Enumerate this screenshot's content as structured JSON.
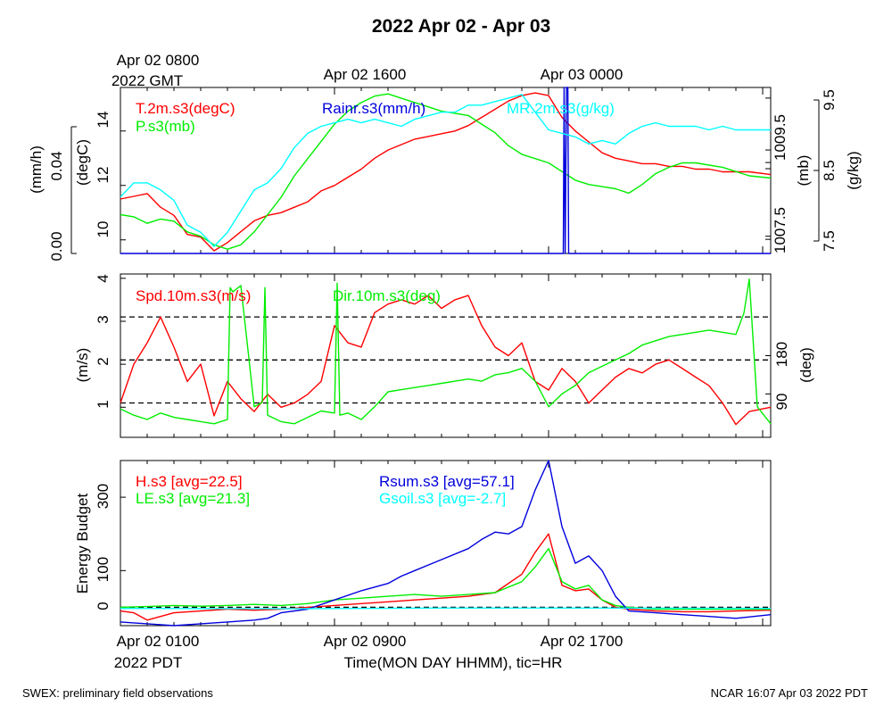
{
  "title": "2022 Apr 02 - Apr 03",
  "footer": {
    "left": "SWEX: preliminary field observations",
    "right": "NCAR 16:07 Apr 03 2022 PDT"
  },
  "colors": {
    "red": "#ff0000",
    "green": "#00ee00",
    "blue": "#0000dd",
    "cyan": "#00ffff",
    "black": "#000000"
  },
  "top_time_labels": [
    {
      "line1": "Apr 02 0800",
      "line2": "2022 GMT",
      "x_hr": 0
    },
    {
      "line1": "Apr 02 1600",
      "line2": "",
      "x_hr": 8
    },
    {
      "line1": "Apr 03 0000",
      "line2": "",
      "x_hr": 16
    }
  ],
  "bottom_time_labels": [
    {
      "line1": "Apr 02 0100",
      "line2": "2022 PDT",
      "x_hr": 0
    },
    {
      "line1": "Apr 02 0900",
      "line2": "",
      "x_hr": 8
    },
    {
      "line1": "Apr 02 1700",
      "line2": "",
      "x_hr": 16
    }
  ],
  "xlabel": "Time(MON DAY HHMM), tic=HR",
  "chart_data": [
    {
      "type": "line",
      "panel": "met",
      "xlim": [
        0,
        24.3
      ],
      "axes": {
        "temp": {
          "label": "(degC)",
          "ticks": [
            "10",
            "12",
            "14"
          ],
          "tick_values": [
            10,
            12,
            14
          ],
          "range": [
            9.5,
            15.6
          ]
        },
        "rain": {
          "label": "(mm/h)",
          "ticks": [
            "0.00",
            "0.04"
          ],
          "tick_values": [
            0,
            0.04
          ],
          "range": [
            0,
            0.073
          ]
        },
        "pres": {
          "label": "(mb)",
          "ticks": [
            "1007.5",
            "1009.5"
          ],
          "tick_values": [
            1007.5,
            1009.5
          ],
          "range": [
            1007.1,
            1010.95
          ]
        },
        "mr": {
          "label": "(g/kg)",
          "ticks": [
            "7.5",
            "8.5",
            "9.5"
          ],
          "tick_values": [
            7.5,
            8.5,
            9.5
          ],
          "range": [
            7.3,
            9.65
          ]
        }
      },
      "series": [
        {
          "name": "T.2m.s3(degC)",
          "color": "#ff0000",
          "axis": "temp",
          "x": [
            0,
            0.5,
            1,
            1.5,
            2,
            2.5,
            3,
            3.5,
            4,
            4.5,
            5,
            5.5,
            6,
            6.5,
            7,
            7.5,
            8,
            8.5,
            9,
            9.5,
            10,
            10.5,
            11,
            11.5,
            12,
            12.5,
            13,
            13.5,
            14,
            14.5,
            15,
            15.5,
            16,
            16.5,
            17,
            17.5,
            18,
            18.5,
            19,
            19.5,
            20,
            20.5,
            21,
            21.5,
            22,
            22.5,
            23,
            23.5,
            24.3
          ],
          "y": [
            11.5,
            11.6,
            11.7,
            11.2,
            10.9,
            10.2,
            10.1,
            9.6,
            9.9,
            10.3,
            10.7,
            10.9,
            11.0,
            11.2,
            11.4,
            11.8,
            12.0,
            12.3,
            12.6,
            13.0,
            13.3,
            13.5,
            13.7,
            13.8,
            13.9,
            14.0,
            14.2,
            14.5,
            14.8,
            15.1,
            15.3,
            15.4,
            15.3,
            14.5,
            14.0,
            13.6,
            13.2,
            13.0,
            12.9,
            12.8,
            12.8,
            12.7,
            12.7,
            12.6,
            12.6,
            12.5,
            12.5,
            12.5,
            12.4
          ]
        },
        {
          "name": "P.s3(mb)",
          "color": "#00ee00",
          "axis": "pres",
          "x": [
            0,
            0.5,
            1,
            1.5,
            2,
            2.5,
            3,
            3.5,
            4,
            4.5,
            5,
            5.5,
            6,
            6.5,
            7,
            7.5,
            8,
            8.5,
            9,
            9.5,
            10,
            10.5,
            11,
            11.5,
            12,
            12.5,
            13,
            13.5,
            14,
            14.5,
            15,
            15.5,
            16,
            16.5,
            17,
            17.5,
            18,
            18.5,
            19,
            19.5,
            20,
            20.5,
            21,
            21.5,
            22,
            22.5,
            23,
            23.5,
            24.3
          ],
          "y": [
            1008.0,
            1007.95,
            1007.8,
            1007.9,
            1007.85,
            1007.6,
            1007.5,
            1007.3,
            1007.2,
            1007.3,
            1007.6,
            1008.0,
            1008.4,
            1008.9,
            1009.3,
            1009.7,
            1010.1,
            1010.4,
            1010.6,
            1010.75,
            1010.8,
            1010.7,
            1010.6,
            1010.5,
            1010.4,
            1010.35,
            1010.3,
            1010.1,
            1009.9,
            1009.6,
            1009.4,
            1009.3,
            1009.2,
            1009.0,
            1008.8,
            1008.7,
            1008.65,
            1008.6,
            1008.5,
            1008.7,
            1008.95,
            1009.1,
            1009.2,
            1009.2,
            1009.15,
            1009.1,
            1009.0,
            1008.9,
            1008.85
          ]
        },
        {
          "name": "Rainr.s3(mm/h)",
          "color": "#0000dd",
          "axis": "rain",
          "x": [
            0,
            16.55,
            16.58,
            16.62,
            16.67,
            16.72,
            16.75,
            24.3
          ],
          "y": [
            0,
            0,
            0.073,
            0.0,
            0.073,
            0.073,
            0,
            0
          ]
        },
        {
          "name": "MR.2m.s3(g/kg)",
          "color": "#00ffff",
          "axis": "mr",
          "x": [
            0,
            0.5,
            1,
            1.5,
            2,
            2.5,
            3,
            3.5,
            4,
            4.5,
            5,
            5.5,
            6,
            6.5,
            7,
            7.5,
            8,
            8.5,
            9,
            9.5,
            10,
            10.5,
            11,
            11.5,
            12,
            12.5,
            13,
            13.5,
            14,
            14.5,
            15,
            15.5,
            16,
            16.5,
            17,
            17.5,
            18,
            18.5,
            19,
            19.5,
            20,
            20.5,
            21,
            21.5,
            22,
            22.5,
            23,
            23.5,
            24.3
          ],
          "y": [
            8.1,
            8.3,
            8.3,
            8.2,
            8.05,
            7.7,
            7.6,
            7.4,
            7.6,
            7.9,
            8.2,
            8.3,
            8.5,
            8.8,
            9.0,
            9.1,
            9.15,
            9.2,
            9.15,
            9.2,
            9.15,
            9.1,
            9.2,
            9.25,
            9.3,
            9.3,
            9.4,
            9.4,
            9.45,
            9.5,
            9.55,
            9.3,
            9.05,
            9.0,
            8.95,
            8.85,
            8.9,
            8.85,
            9.0,
            9.1,
            9.15,
            9.1,
            9.1,
            9.1,
            9.05,
            9.1,
            9.05,
            9.05,
            9.05
          ]
        }
      ],
      "legend": [
        {
          "text": "T.2m.s3(degC)",
          "color": "#ff0000"
        },
        {
          "text": "P.s3(mb)",
          "color": "#00ee00"
        },
        {
          "text": "Rainr.s3(mm/h)",
          "color": "#0000dd"
        },
        {
          "text": "MR.2m.s3(g/kg)",
          "color": "#00ffff"
        }
      ]
    },
    {
      "type": "line",
      "panel": "wind",
      "xlim": [
        0,
        24.3
      ],
      "axes": {
        "spd": {
          "label": "(m/s)",
          "ticks": [
            "1",
            "2",
            "3",
            "4"
          ],
          "tick_values": [
            1,
            2,
            3,
            4
          ],
          "range": [
            0.3,
            4.1
          ]
        },
        "dir": {
          "label": "(deg)",
          "ticks": [
            "90",
            "180"
          ],
          "tick_values": [
            90,
            180
          ],
          "range": [
            -12,
            372
          ]
        }
      },
      "reference_lines": {
        "axis": "spd",
        "values": [
          1.1,
          2.1,
          3.1
        ],
        "style": "dashed"
      },
      "series": [
        {
          "name": "Spd.10m.s3(m/s)",
          "color": "#ff0000",
          "axis": "spd",
          "x": [
            0,
            0.5,
            1,
            1.5,
            2,
            2.5,
            3,
            3.5,
            4,
            4.5,
            5,
            5.5,
            6,
            6.5,
            7,
            7.5,
            8,
            8.5,
            9,
            9.5,
            10,
            10.5,
            11,
            11.5,
            12,
            12.5,
            13,
            13.5,
            14,
            14.5,
            15,
            15.5,
            16,
            16.5,
            17,
            17.5,
            18,
            18.5,
            19,
            19.5,
            20,
            20.5,
            21,
            21.5,
            22,
            22.5,
            23,
            23.5,
            24.3
          ],
          "y": [
            1.1,
            2.0,
            2.5,
            3.1,
            2.4,
            1.6,
            2.0,
            0.8,
            1.6,
            1.2,
            0.9,
            1.3,
            1.0,
            1.1,
            1.3,
            1.6,
            2.9,
            2.5,
            2.4,
            3.2,
            3.4,
            3.5,
            3.4,
            3.6,
            3.3,
            3.5,
            3.6,
            2.9,
            2.4,
            2.2,
            2.5,
            1.6,
            1.4,
            1.9,
            1.6,
            1.1,
            1.4,
            1.7,
            1.9,
            1.8,
            2.0,
            2.1,
            1.9,
            1.7,
            1.5,
            1.1,
            0.6,
            0.9,
            1.0
          ]
        },
        {
          "name": "Dir.10m.s3(deg)",
          "color": "#00ee00",
          "axis": "dir",
          "x": [
            0,
            0.5,
            1,
            1.5,
            2,
            2.5,
            3,
            3.5,
            4,
            4.1,
            4.2,
            4.5,
            5,
            5.3,
            5.4,
            5.5,
            6,
            6.5,
            7,
            7.5,
            8,
            8.1,
            8.2,
            8.5,
            9,
            9.5,
            10,
            10.5,
            11,
            11.5,
            12,
            12.5,
            13,
            13.5,
            14,
            14.5,
            15,
            15.5,
            16,
            16.5,
            17,
            17.5,
            18,
            18.5,
            19,
            19.5,
            20,
            20.5,
            21,
            21.5,
            22,
            22.5,
            23,
            23.3,
            23.5,
            23.8,
            24.3
          ],
          "y": [
            55,
            40,
            30,
            45,
            35,
            30,
            25,
            20,
            30,
            340,
            330,
            345,
            60,
            70,
            340,
            40,
            25,
            20,
            35,
            50,
            45,
            350,
            40,
            45,
            30,
            60,
            95,
            100,
            105,
            110,
            115,
            120,
            125,
            120,
            135,
            140,
            150,
            120,
            60,
            90,
            110,
            140,
            155,
            170,
            185,
            205,
            215,
            225,
            230,
            235,
            240,
            235,
            230,
            280,
            360,
            60,
            20
          ]
        }
      ],
      "legend": [
        {
          "text": "Spd.10m.s3(m/s)",
          "color": "#ff0000"
        },
        {
          "text": "Dir.10m.s3(deg)",
          "color": "#00ee00"
        }
      ]
    },
    {
      "type": "line",
      "panel": "energy",
      "xlim": [
        0,
        24.3
      ],
      "axes": {
        "eb": {
          "label": "Energy Budget",
          "ticks": [
            "0",
            "100",
            "300"
          ],
          "tick_values": [
            0,
            100,
            300
          ],
          "range": [
            -50,
            400
          ]
        }
      },
      "reference_lines": {
        "axis": "eb",
        "values": [
          0
        ],
        "style": "dashed"
      },
      "series": [
        {
          "name": "H.s3",
          "color": "#ff0000",
          "axis": "eb",
          "x": [
            0,
            0.5,
            1,
            1.5,
            2,
            3,
            4,
            5,
            6,
            7,
            8,
            9,
            10,
            11,
            12,
            13,
            14,
            15,
            15.5,
            16,
            16.5,
            17,
            17.5,
            18,
            18.5,
            19,
            20,
            21,
            22,
            23,
            24.3
          ],
          "y": [
            -10,
            -15,
            -35,
            -25,
            -15,
            -10,
            -5,
            -8,
            -5,
            0,
            5,
            10,
            15,
            20,
            25,
            30,
            40,
            90,
            150,
            200,
            60,
            45,
            50,
            20,
            0,
            -5,
            -10,
            -12,
            -12,
            -10,
            -8
          ]
        },
        {
          "name": "LE.s3",
          "color": "#00ee00",
          "axis": "eb",
          "x": [
            0,
            1,
            2,
            3,
            4,
            5,
            6,
            7,
            8,
            9,
            10,
            11,
            12,
            13,
            14,
            15,
            15.5,
            16,
            16.5,
            17,
            17.5,
            18,
            18.5,
            19,
            20,
            21,
            22,
            23,
            24.3
          ],
          "y": [
            0,
            2,
            5,
            3,
            5,
            8,
            5,
            10,
            20,
            25,
            30,
            35,
            30,
            35,
            40,
            70,
            110,
            160,
            70,
            50,
            60,
            20,
            5,
            0,
            -5,
            -5,
            -5,
            -5,
            -5
          ]
        },
        {
          "name": "Rsum.s3",
          "color": "#0000dd",
          "axis": "eb",
          "x": [
            0,
            1,
            2,
            3,
            4,
            5,
            5.5,
            6,
            7,
            8,
            9,
            10,
            10.5,
            11,
            12,
            13,
            13.5,
            14,
            14.5,
            15,
            15.5,
            16,
            16.5,
            17,
            17.5,
            18,
            18.5,
            19,
            20,
            21,
            22,
            23,
            24.3
          ],
          "y": [
            -40,
            -45,
            -50,
            -45,
            -40,
            -35,
            -30,
            -15,
            -5,
            20,
            45,
            65,
            85,
            100,
            130,
            160,
            185,
            205,
            200,
            220,
            320,
            400,
            220,
            120,
            140,
            100,
            30,
            -10,
            -15,
            -20,
            -25,
            -30,
            -20
          ]
        },
        {
          "name": "Gsoil.s3",
          "color": "#00ffff",
          "axis": "eb",
          "x": [
            0,
            6,
            12,
            18,
            24.3
          ],
          "y": [
            -3,
            -4,
            -2,
            -2,
            -3
          ]
        }
      ],
      "legend": [
        {
          "text": "H.s3 [avg=22.5]",
          "color": "#ff0000"
        },
        {
          "text": "LE.s3 [avg=21.3]",
          "color": "#00ee00"
        },
        {
          "text": "Rsum.s3 [avg=57.1]",
          "color": "#0000dd"
        },
        {
          "text": "Gsoil.s3 [avg=-2.7]",
          "color": "#00ffff"
        }
      ]
    }
  ]
}
